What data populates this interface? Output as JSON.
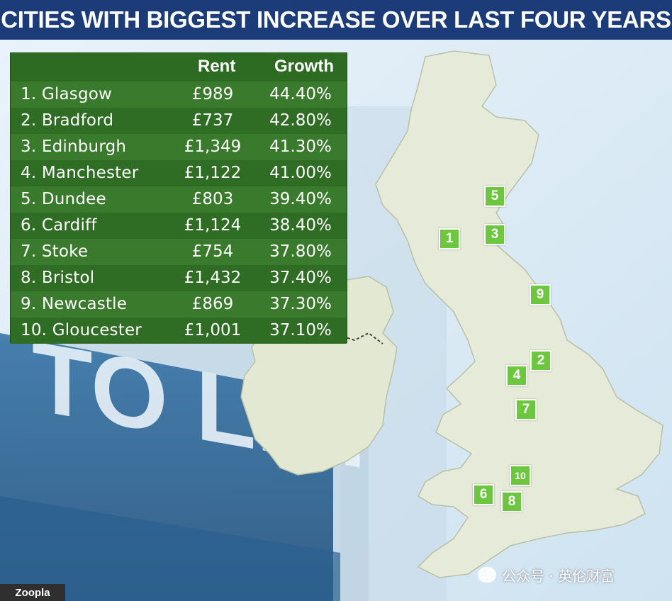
{
  "title": "CITIES WITH BIGGEST INCREASE OVER LAST FOUR YEARS",
  "table": {
    "headers": {
      "rent": "Rent",
      "growth": "Growth"
    },
    "rows": [
      {
        "city": "1. Glasgow",
        "rent": "£989",
        "growth": "44.40%"
      },
      {
        "city": "2. Bradford",
        "rent": "£737",
        "growth": "42.80%"
      },
      {
        "city": "3. Edinburgh",
        "rent": "£1,349",
        "growth": "41.30%"
      },
      {
        "city": "4. Manchester",
        "rent": "£1,122",
        "growth": "41.00%"
      },
      {
        "city": "5. Dundee",
        "rent": "£803",
        "growth": "39.40%"
      },
      {
        "city": "6. Cardiff",
        "rent": "£1,124",
        "growth": "38.40%"
      },
      {
        "city": "7. Stoke",
        "rent": "£754",
        "growth": "37.80%"
      },
      {
        "city": "8. Bristol",
        "rent": "£1,432",
        "growth": "37.40%"
      },
      {
        "city": "9. Newcastle",
        "rent": "£869",
        "growth": "37.30%"
      },
      {
        "city": "10. Gloucester",
        "rent": "£1,001",
        "growth": "37.10%"
      }
    ]
  },
  "markers": [
    "1",
    "2",
    "3",
    "4",
    "5",
    "6",
    "7",
    "8",
    "9",
    "10"
  ],
  "sign_text": "TO LET",
  "brand": "Zoopla",
  "watermark": "公众号 · 英伦财富",
  "colors": {
    "title_bg": "#1b3c78",
    "table_bg": "#2d6a22",
    "marker": "#6cc63e",
    "land": "#e6ead8",
    "sea": "#dcebf5"
  }
}
